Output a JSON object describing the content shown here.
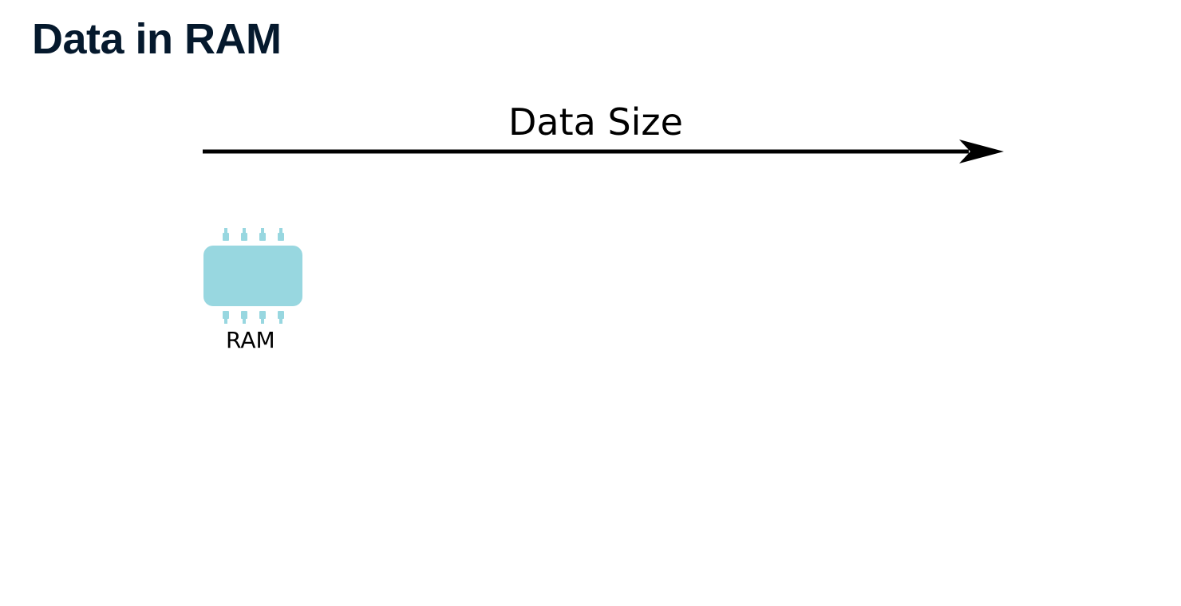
{
  "title": "Data in RAM",
  "diagram": {
    "axis_label": "Data Size",
    "components": [
      {
        "label": "RAM",
        "icon": "ram-chip-icon",
        "color": "#98d7e0"
      }
    ]
  },
  "colors": {
    "title": "#05192d",
    "arrow": "#000000",
    "chip": "#98d7e0"
  }
}
